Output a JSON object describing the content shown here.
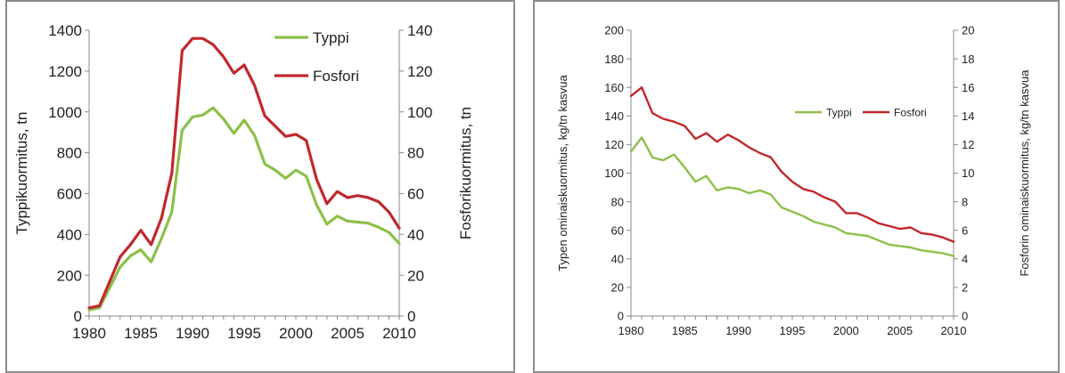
{
  "chart_data": [
    {
      "type": "line",
      "title": "",
      "xlabel": "",
      "ylabel": "Typpikuormitus, tn",
      "y2label": "Fosforikuormitus, tn",
      "xlim": [
        1980,
        2010
      ],
      "xticks": [
        1980,
        1985,
        1990,
        1995,
        2000,
        2005,
        2010
      ],
      "ylim": [
        0,
        1400
      ],
      "yticks": [
        0,
        200,
        400,
        600,
        800,
        1000,
        1200,
        1400
      ],
      "y2lim": [
        0,
        140
      ],
      "y2ticks": [
        0,
        20,
        40,
        60,
        80,
        100,
        120,
        140
      ],
      "grid": false,
      "legend_position": "top-right",
      "x": [
        1980,
        1981,
        1982,
        1983,
        1984,
        1985,
        1986,
        1987,
        1988,
        1989,
        1990,
        1991,
        1992,
        1993,
        1994,
        1995,
        1996,
        1997,
        1998,
        1999,
        2000,
        2001,
        2002,
        2003,
        2004,
        2005,
        2006,
        2007,
        2008,
        2009,
        2010
      ],
      "series": [
        {
          "name": "Typpi",
          "axis": "left",
          "color": "#8cc04a",
          "values": [
            30,
            40,
            140,
            240,
            295,
            325,
            265,
            380,
            510,
            910,
            975,
            985,
            1020,
            965,
            895,
            960,
            885,
            745,
            715,
            675,
            715,
            685,
            545,
            450,
            490,
            465,
            460,
            455,
            435,
            410,
            355
          ]
        },
        {
          "name": "Fosfori",
          "axis": "right",
          "color": "#c0282d",
          "values": [
            4,
            5,
            17,
            29,
            35,
            42,
            35,
            48,
            70,
            130,
            136,
            136,
            133,
            127,
            119,
            123,
            113,
            98,
            93,
            88,
            89,
            86,
            67,
            55,
            61,
            58,
            59,
            58,
            56,
            51,
            43
          ]
        }
      ]
    },
    {
      "type": "line",
      "title": "",
      "xlabel": "",
      "ylabel": "Typen ominaiskuormitus, kg/tn kasvua",
      "y2label": "Fosforin ominaiskuormitus, kg/tn kasvua",
      "xlim": [
        1980,
        2010
      ],
      "xticks": [
        1980,
        1985,
        1990,
        1995,
        2000,
        2005,
        2010
      ],
      "ylim": [
        0,
        200
      ],
      "yticks": [
        0,
        20,
        40,
        60,
        80,
        100,
        120,
        140,
        160,
        180,
        200
      ],
      "y2lim": [
        0,
        20
      ],
      "y2ticks": [
        0,
        2,
        4,
        6,
        8,
        10,
        12,
        14,
        16,
        18,
        20
      ],
      "grid": false,
      "legend_position": "top-right",
      "x": [
        1980,
        1981,
        1982,
        1983,
        1984,
        1985,
        1986,
        1987,
        1988,
        1989,
        1990,
        1991,
        1992,
        1993,
        1994,
        1995,
        1996,
        1997,
        1998,
        1999,
        2000,
        2001,
        2002,
        2003,
        2004,
        2005,
        2006,
        2007,
        2008,
        2009,
        2010
      ],
      "series": [
        {
          "name": "Typpi",
          "axis": "left",
          "color": "#8cc04a",
          "values": [
            115,
            125,
            111,
            109,
            113,
            104,
            94,
            98,
            88,
            90,
            89,
            86,
            88,
            85,
            76,
            73,
            70,
            66,
            64,
            62,
            58,
            57,
            56,
            53,
            50,
            49,
            48,
            46,
            45,
            44,
            42
          ]
        },
        {
          "name": "Fosfori",
          "axis": "right",
          "color": "#c0282d",
          "values": [
            15.4,
            16.0,
            14.2,
            13.8,
            13.6,
            13.3,
            12.4,
            12.8,
            12.2,
            12.7,
            12.3,
            11.8,
            11.4,
            11.1,
            10.1,
            9.4,
            8.9,
            8.7,
            8.3,
            8.0,
            7.2,
            7.2,
            6.9,
            6.5,
            6.3,
            6.1,
            6.2,
            5.8,
            5.7,
            5.5,
            5.2
          ]
        }
      ]
    }
  ]
}
